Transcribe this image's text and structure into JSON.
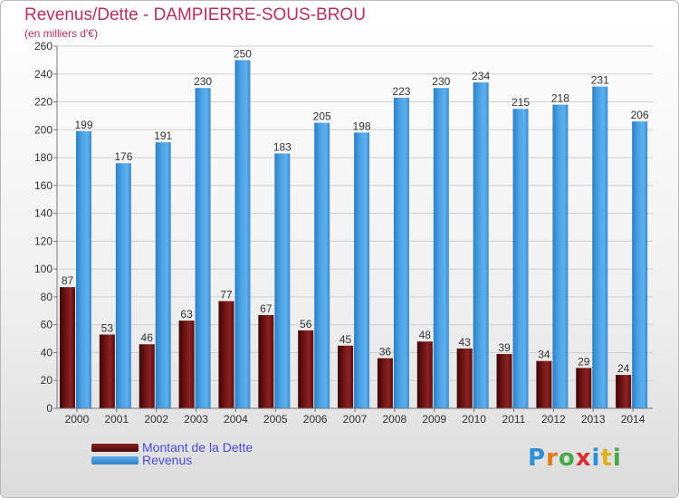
{
  "title": "Revenus/Dette - DAMPIERRE-SOUS-BROU",
  "subtitle": "(en milliers d'€)",
  "logo_text": "Proxiti",
  "colors": {
    "debt": "#6b1212",
    "revenue": "#3f98dc",
    "title": "#b5305a",
    "legend_text": "#4a4ad8"
  },
  "legend": {
    "items": [
      {
        "label": "Montant de la Dette",
        "color": "#6b1212"
      },
      {
        "label": "Revenus",
        "color": "#3f98dc"
      }
    ]
  },
  "chart_data": {
    "type": "bar",
    "categories": [
      "2000",
      "2001",
      "2002",
      "2003",
      "2004",
      "2005",
      "2006",
      "2007",
      "2008",
      "2009",
      "2010",
      "2011",
      "2012",
      "2013",
      "2014"
    ],
    "series": [
      {
        "name": "Montant de la Dette",
        "values": [
          87,
          53,
          46,
          63,
          77,
          67,
          56,
          45,
          36,
          48,
          43,
          39,
          34,
          29,
          24
        ]
      },
      {
        "name": "Revenus",
        "values": [
          199,
          176,
          191,
          230,
          250,
          183,
          205,
          198,
          223,
          230,
          234,
          215,
          218,
          231,
          206
        ]
      }
    ],
    "title": "Revenus/Dette - DAMPIERRE-SOUS-BROU",
    "subtitle": "(en milliers d'€)",
    "ylim": [
      0,
      260
    ],
    "yticks": [
      0,
      20,
      40,
      60,
      80,
      100,
      120,
      140,
      160,
      180,
      200,
      220,
      240,
      260
    ],
    "grid": true,
    "legend_position": "bottom-left"
  }
}
